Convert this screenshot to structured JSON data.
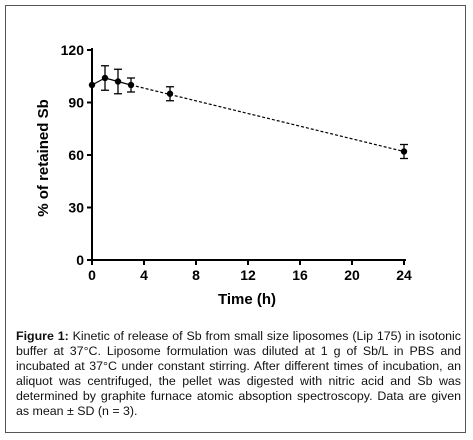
{
  "chart_data": {
    "type": "scatter",
    "xlabel": "Time (h)",
    "ylabel": "% of retained Sb",
    "xlim": [
      0,
      24
    ],
    "ylim": [
      0,
      120
    ],
    "xticks": [
      0,
      4,
      8,
      12,
      16,
      20,
      24
    ],
    "yticks": [
      0,
      30,
      60,
      90,
      120
    ],
    "grid": false,
    "points": [
      {
        "x": 0,
        "y": 100,
        "sd": 0
      },
      {
        "x": 1,
        "y": 104,
        "sd": 7
      },
      {
        "x": 2,
        "y": 102,
        "sd": 7
      },
      {
        "x": 3,
        "y": 100,
        "sd": 4
      },
      {
        "x": 6,
        "y": 95,
        "sd": 4
      },
      {
        "x": 24,
        "y": 62,
        "sd": 4
      }
    ],
    "trendline": {
      "style": "dashed",
      "x": [
        3,
        24
      ],
      "y": [
        100,
        62
      ]
    },
    "colors": {
      "points": "#000000",
      "axes": "#000000"
    }
  },
  "caption": {
    "label": "Figure 1:",
    "text": " Kinetic of release of Sb from small size liposomes (Lip 175) in isotonic buffer at 37°C. Liposome formulation was diluted at 1 g of Sb/L in PBS and incubated at 37°C under constant stirring. After different times of incubation, an aliquot was centrifuged, the pellet was digested with nitric acid and Sb was determined by graphite furnace atomic absoption spectroscopy. Data are given as mean ± SD (n = 3)."
  }
}
